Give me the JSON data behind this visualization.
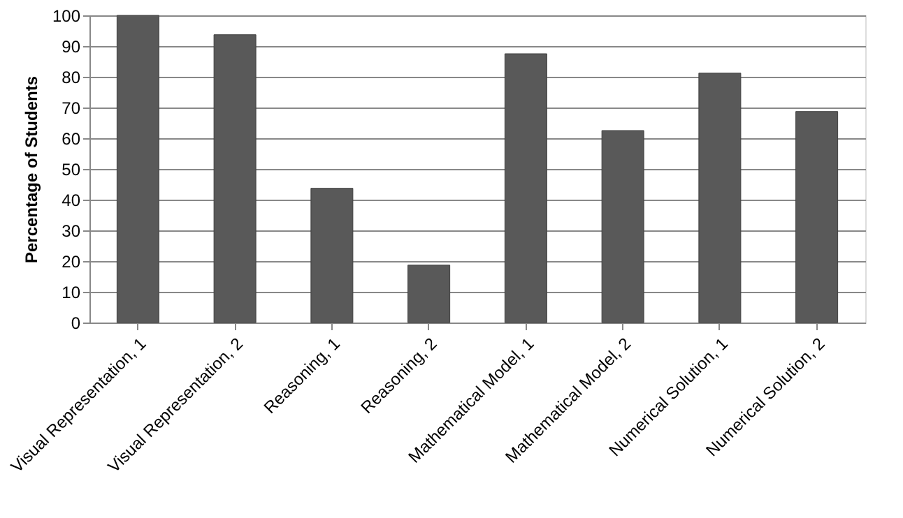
{
  "chart_data": {
    "type": "bar",
    "ylabel": "Percentage of Students",
    "categories": [
      "Visual Representation, 1",
      "Visual Representation, 2",
      "Reasoning, 1",
      "Reasoning, 2",
      "Mathematical Model, 1",
      "Mathematical Model, 2",
      "Numerical Solution, 1",
      "Numerical Solution, 2"
    ],
    "values": [
      100,
      93.7,
      43.7,
      18.7,
      87.5,
      62.5,
      81.2,
      68.7
    ],
    "color": "#595959",
    "ylim": [
      0,
      100
    ],
    "yticks": [
      0,
      10,
      20,
      30,
      40,
      50,
      60,
      70,
      80,
      90,
      100
    ],
    "grid": "y"
  }
}
